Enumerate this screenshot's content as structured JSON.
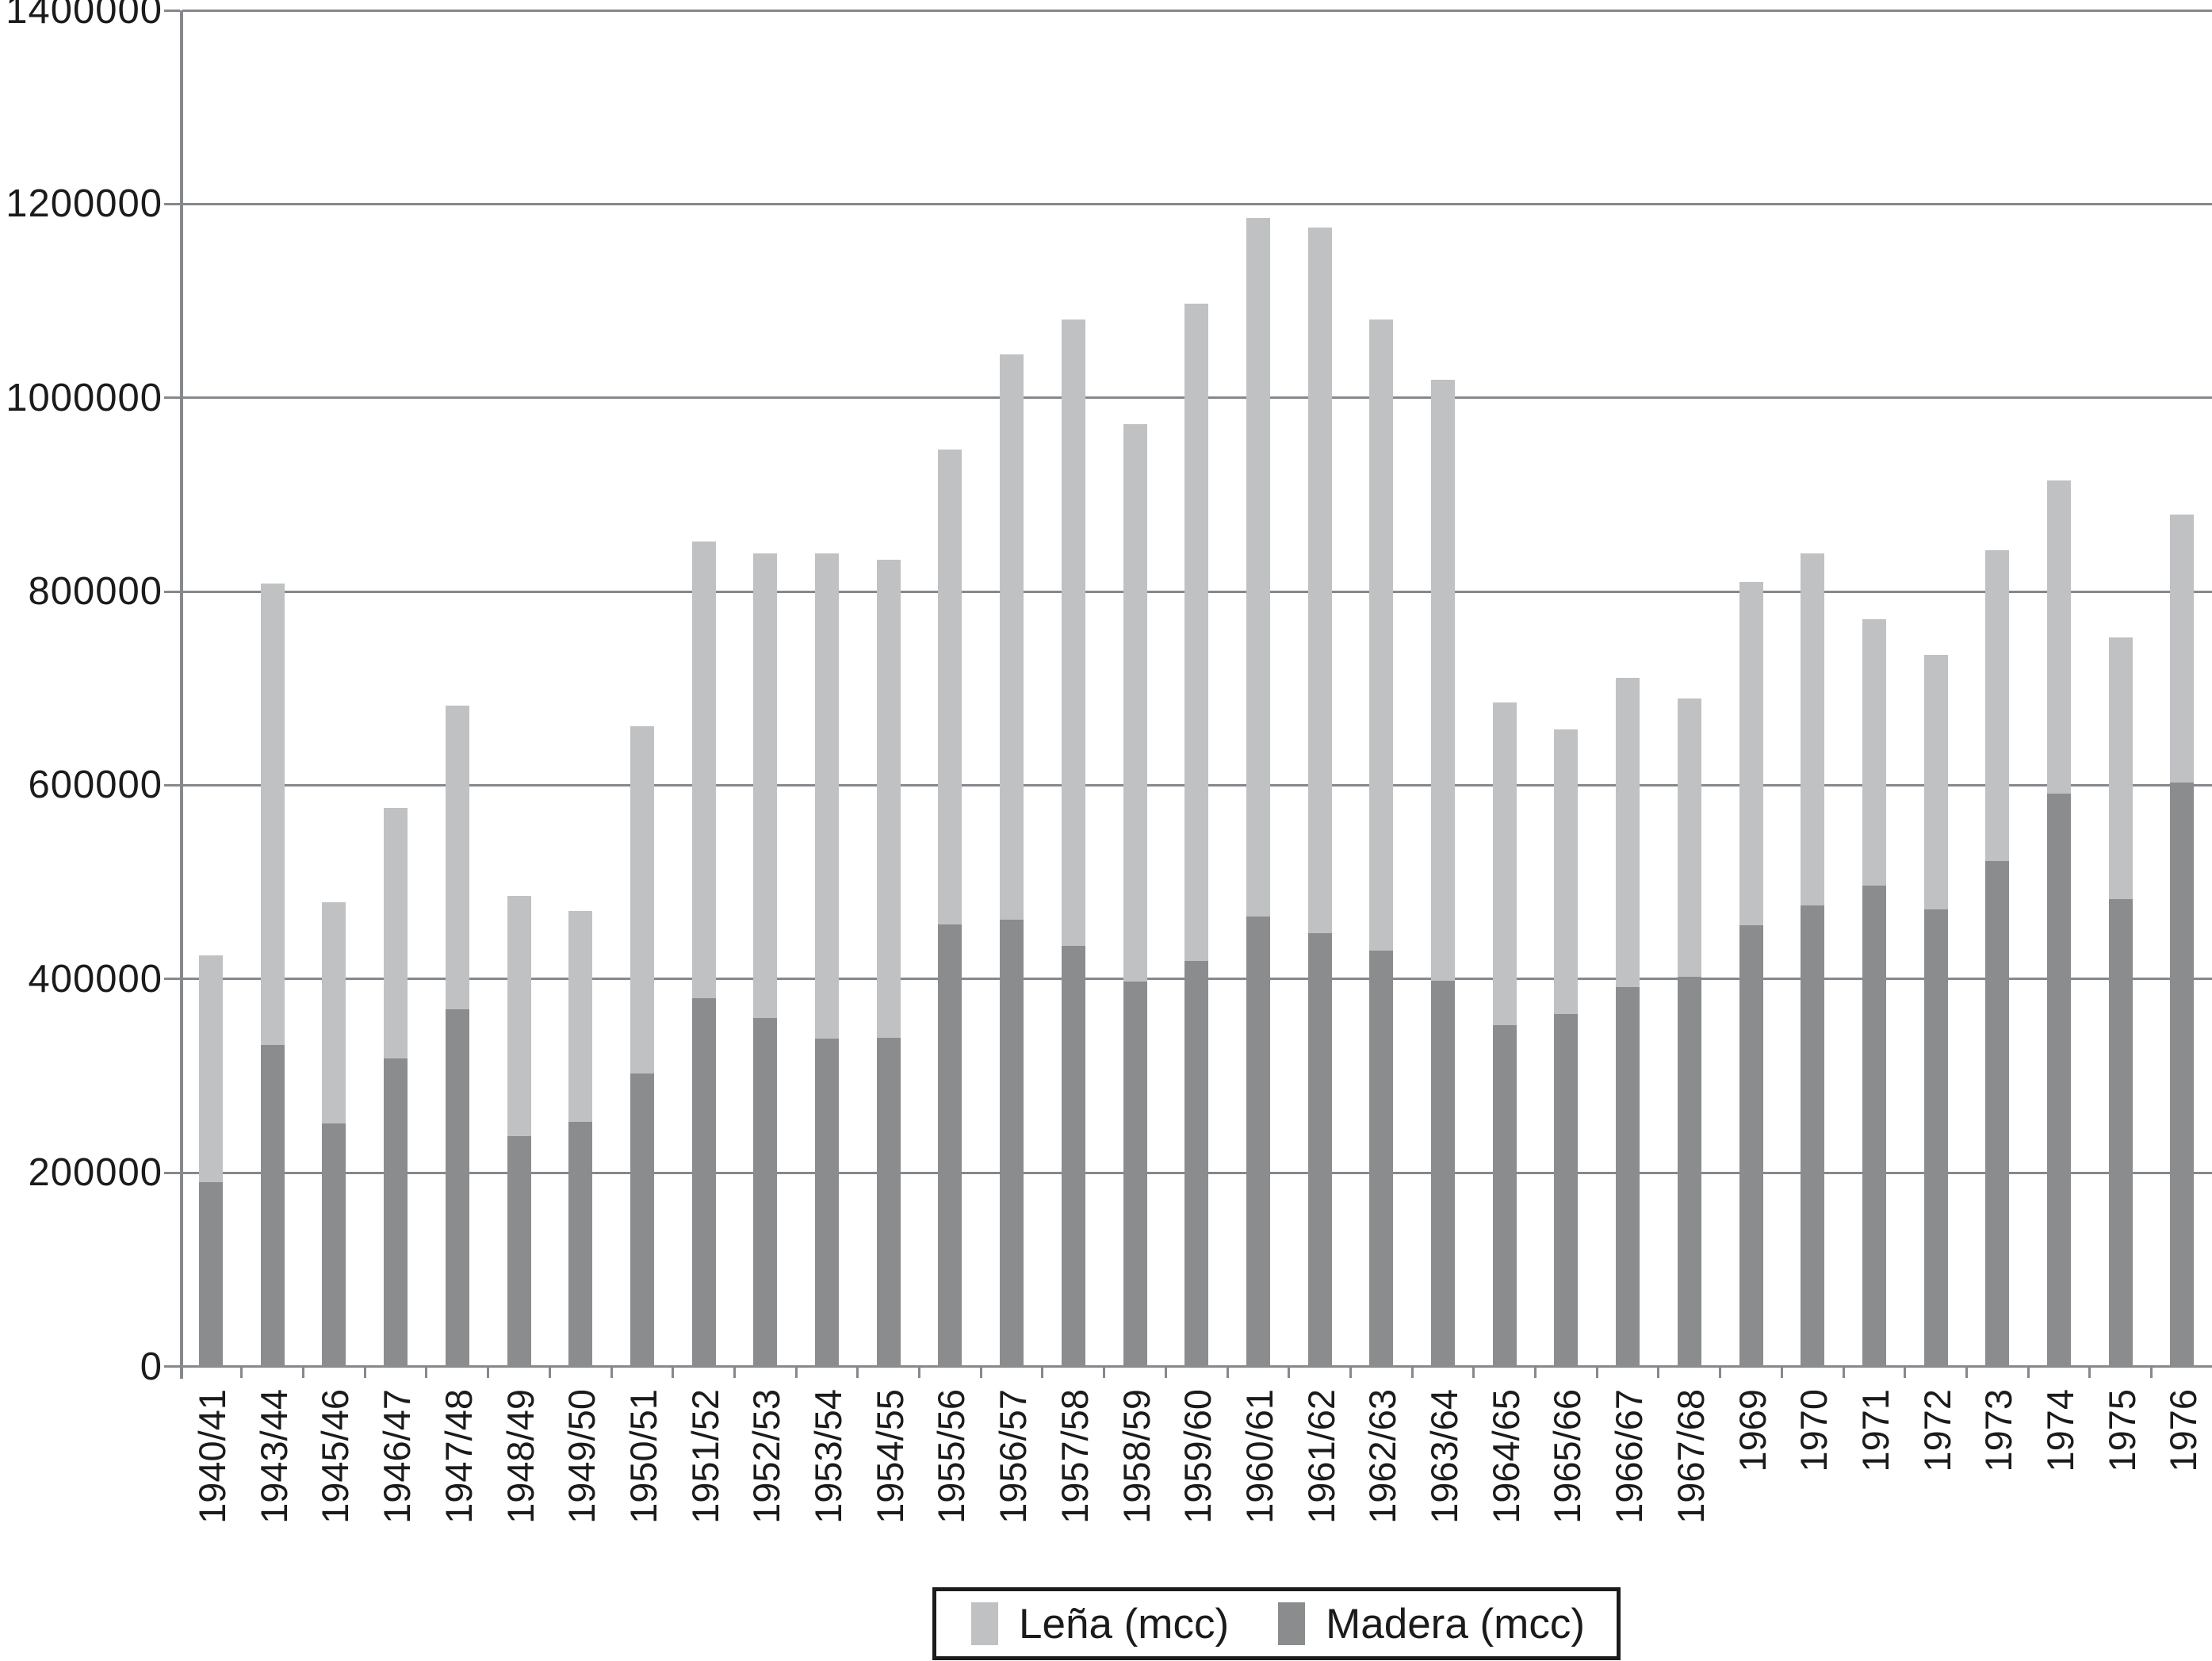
{
  "chart_data": {
    "type": "bar",
    "subtype": "stacked-vertical",
    "title": "",
    "xlabel": "",
    "ylabel": "",
    "ylim": [
      0,
      1400000
    ],
    "y_tick_step": 200000,
    "grid": true,
    "legend_position": "bottom-center",
    "y_ticks": [
      {
        "label": "1400000",
        "value": 1400000
      },
      {
        "label": "1200000",
        "value": 1200000
      },
      {
        "label": "1000000",
        "value": 1000000
      },
      {
        "label": "800000",
        "value": 800000
      },
      {
        "label": "600000",
        "value": 600000
      },
      {
        "label": "400000",
        "value": 400000
      },
      {
        "label": "200000",
        "value": 200000
      },
      {
        "label": "0",
        "value": 0
      }
    ],
    "categories": [
      "1940/41",
      "1943/44",
      "1945/46",
      "1946/47",
      "1947/48",
      "1948/49",
      "1949/50",
      "1950/51",
      "1951/52",
      "1952/53",
      "1953/54",
      "1954/55",
      "1955/56",
      "1956/57",
      "1957/58",
      "1958/59",
      "1959/60",
      "1960/61",
      "1961/62",
      "1962/63",
      "1963/64",
      "1964/65",
      "1965/66",
      "1966/67",
      "1967/68",
      "1969",
      "1970",
      "1971",
      "1972",
      "1973",
      "1974",
      "1975",
      "1976"
    ],
    "series": [
      {
        "name": "Leña (mcc)",
        "color": "#bfc1c3",
        "stack": "top",
        "values": [
          234000,
          477000,
          229000,
          259000,
          314000,
          248000,
          218000,
          358000,
          471000,
          480000,
          501000,
          493000,
          490000,
          583000,
          646000,
          575000,
          679000,
          721000,
          728000,
          651000,
          620000,
          333000,
          294000,
          319000,
          287000,
          354000,
          364000,
          275000,
          263000,
          321000,
          323000,
          270000,
          277000
        ]
      },
      {
        "name": "Madera (mcc)",
        "color": "#8a8c8e",
        "stack": "bottom",
        "values": [
          191000,
          332000,
          251000,
          318000,
          369000,
          238000,
          253000,
          303000,
          381000,
          360000,
          339000,
          340000,
          457000,
          462000,
          435000,
          398000,
          419000,
          465000,
          448000,
          430000,
          399000,
          353000,
          364000,
          392000,
          403000,
          456000,
          476000,
          497000,
          472000,
          522000,
          592000,
          483000,
          603000
        ]
      }
    ],
    "totals": [
      425000,
      809000,
      480000,
      577000,
      683000,
      486000,
      471000,
      661000,
      852000,
      840000,
      840000,
      833000,
      947000,
      1045000,
      1081000,
      973000,
      1098000,
      1186000,
      1176000,
      1081000,
      1019000,
      686000,
      658000,
      711000,
      690000,
      810000,
      840000,
      772000,
      735000,
      843000,
      915000,
      753000,
      880000
    ],
    "legend": {
      "items": [
        {
          "label": "Leña (mcc)",
          "color": "#bfc1c3"
        },
        {
          "label": "Madera (mcc)",
          "color": "#8a8c8e"
        }
      ]
    },
    "axis_color": "#85888c",
    "text_color": "#1b1b1b"
  }
}
